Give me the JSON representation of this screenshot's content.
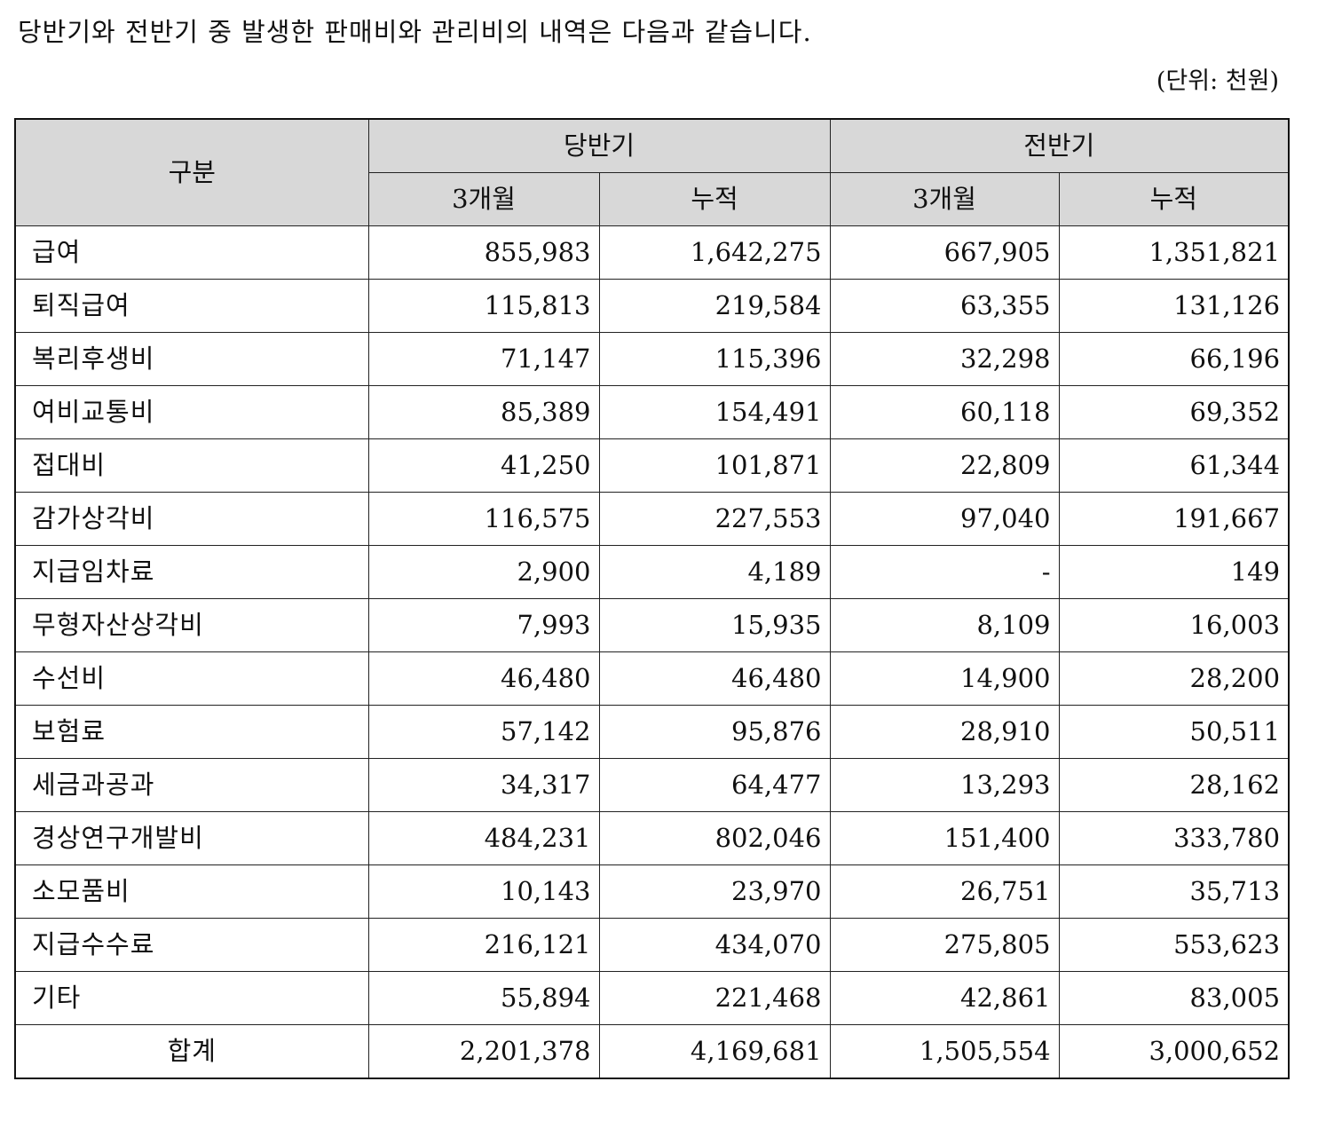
{
  "intro_text": "당반기와 전반기 중 발생한 판매비와 관리비의 내역은 다음과 같습니다.",
  "unit_text": "(단위: 천원)",
  "header": {
    "category": "구분",
    "current_period": "당반기",
    "previous_period": "전반기",
    "three_months": "3개월",
    "cumulative": "누적"
  },
  "rows": [
    {
      "label": "급여",
      "cur_3m": "855,983",
      "cur_cum": "1,642,275",
      "prev_3m": "667,905",
      "prev_cum": "1,351,821"
    },
    {
      "label": "퇴직급여",
      "cur_3m": "115,813",
      "cur_cum": "219,584",
      "prev_3m": "63,355",
      "prev_cum": "131,126"
    },
    {
      "label": "복리후생비",
      "cur_3m": "71,147",
      "cur_cum": "115,396",
      "prev_3m": "32,298",
      "prev_cum": "66,196"
    },
    {
      "label": "여비교통비",
      "cur_3m": "85,389",
      "cur_cum": "154,491",
      "prev_3m": "60,118",
      "prev_cum": "69,352"
    },
    {
      "label": "접대비",
      "cur_3m": "41,250",
      "cur_cum": "101,871",
      "prev_3m": "22,809",
      "prev_cum": "61,344"
    },
    {
      "label": "감가상각비",
      "cur_3m": "116,575",
      "cur_cum": "227,553",
      "prev_3m": "97,040",
      "prev_cum": "191,667"
    },
    {
      "label": "지급임차료",
      "cur_3m": "2,900",
      "cur_cum": "4,189",
      "prev_3m": "-",
      "prev_cum": "149"
    },
    {
      "label": "무형자산상각비",
      "cur_3m": "7,993",
      "cur_cum": "15,935",
      "prev_3m": "8,109",
      "prev_cum": "16,003"
    },
    {
      "label": "수선비",
      "cur_3m": "46,480",
      "cur_cum": "46,480",
      "prev_3m": "14,900",
      "prev_cum": "28,200"
    },
    {
      "label": "보험료",
      "cur_3m": "57,142",
      "cur_cum": "95,876",
      "prev_3m": "28,910",
      "prev_cum": "50,511"
    },
    {
      "label": "세금과공과",
      "cur_3m": "34,317",
      "cur_cum": "64,477",
      "prev_3m": "13,293",
      "prev_cum": "28,162"
    },
    {
      "label": "경상연구개발비",
      "cur_3m": "484,231",
      "cur_cum": "802,046",
      "prev_3m": "151,400",
      "prev_cum": "333,780"
    },
    {
      "label": "소모품비",
      "cur_3m": "10,143",
      "cur_cum": "23,970",
      "prev_3m": "26,751",
      "prev_cum": "35,713"
    },
    {
      "label": "지급수수료",
      "cur_3m": "216,121",
      "cur_cum": "434,070",
      "prev_3m": "275,805",
      "prev_cum": "553,623"
    },
    {
      "label": "기타",
      "cur_3m": "55,894",
      "cur_cum": "221,468",
      "prev_3m": "42,861",
      "prev_cum": "83,005"
    }
  ],
  "total": {
    "label": "합계",
    "cur_3m": "2,201,378",
    "cur_cum": "4,169,681",
    "prev_3m": "1,505,554",
    "prev_cum": "3,000,652"
  }
}
